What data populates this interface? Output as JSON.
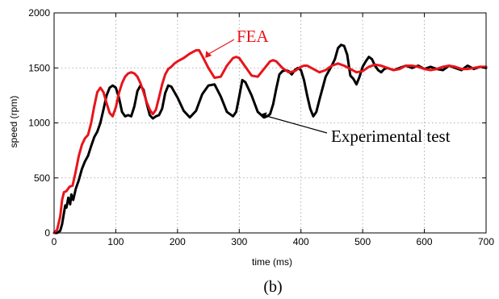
{
  "chart_data": {
    "type": "line",
    "xlabel": "time (ms)",
    "ylabel": "speed (rpm)",
    "xlim": [
      0,
      700
    ],
    "ylim": [
      0,
      2000
    ],
    "xticks": [
      0,
      100,
      200,
      300,
      400,
      500,
      600,
      700
    ],
    "yticks": [
      0,
      500,
      1000,
      1500,
      2000
    ],
    "grid": true,
    "caption": "(b)",
    "colors": {
      "FEA": "#e8141a",
      "Experimental test": "#000000"
    },
    "annotations": [
      {
        "text": "FEA",
        "points_to": {
          "x": 245,
          "y": 1590
        }
      },
      {
        "text": "Experimental test",
        "points_to": {
          "x": 333,
          "y": 1075
        }
      }
    ],
    "series": [
      {
        "name": "FEA",
        "x": [
          0,
          5,
          10,
          13,
          16,
          20,
          25,
          30,
          35,
          40,
          45,
          50,
          55,
          60,
          65,
          70,
          75,
          80,
          85,
          90,
          95,
          100,
          105,
          110,
          115,
          120,
          125,
          130,
          135,
          140,
          145,
          150,
          155,
          160,
          165,
          170,
          175,
          180,
          185,
          190,
          195,
          200,
          210,
          220,
          230,
          235,
          240,
          250,
          260,
          270,
          280,
          290,
          295,
          300,
          310,
          320,
          330,
          340,
          350,
          355,
          360,
          370,
          380,
          390,
          400,
          405,
          410,
          420,
          430,
          440,
          450,
          460,
          470,
          480,
          490,
          500,
          510,
          520,
          530,
          540,
          550,
          560,
          570,
          580,
          590,
          600,
          610,
          620,
          630,
          640,
          650,
          660,
          670,
          680,
          690,
          700
        ],
        "y": [
          0,
          30,
          150,
          300,
          370,
          380,
          420,
          430,
          560,
          700,
          800,
          860,
          890,
          1000,
          1150,
          1280,
          1320,
          1280,
          1180,
          1090,
          1060,
          1140,
          1270,
          1360,
          1420,
          1450,
          1460,
          1450,
          1420,
          1360,
          1280,
          1190,
          1120,
          1080,
          1120,
          1230,
          1350,
          1440,
          1490,
          1510,
          1540,
          1560,
          1590,
          1630,
          1660,
          1660,
          1610,
          1500,
          1410,
          1420,
          1520,
          1590,
          1600,
          1590,
          1510,
          1430,
          1420,
          1490,
          1560,
          1570,
          1560,
          1500,
          1460,
          1470,
          1510,
          1520,
          1520,
          1490,
          1460,
          1480,
          1520,
          1540,
          1520,
          1490,
          1460,
          1470,
          1510,
          1530,
          1520,
          1500,
          1480,
          1490,
          1520,
          1520,
          1510,
          1490,
          1480,
          1490,
          1510,
          1520,
          1510,
          1490,
          1490,
          1500,
          1510,
          1510
        ]
      },
      {
        "name": "Experimental test",
        "x": [
          0,
          5,
          10,
          13,
          16,
          18,
          20,
          23,
          26,
          28,
          31,
          35,
          40,
          45,
          50,
          55,
          60,
          65,
          70,
          75,
          80,
          85,
          90,
          95,
          100,
          105,
          110,
          115,
          120,
          125,
          130,
          135,
          140,
          145,
          150,
          155,
          160,
          165,
          170,
          175,
          180,
          185,
          190,
          195,
          200,
          210,
          220,
          230,
          240,
          250,
          260,
          270,
          280,
          290,
          295,
          300,
          305,
          310,
          320,
          330,
          340,
          345,
          350,
          355,
          360,
          365,
          370,
          375,
          380,
          385,
          390,
          395,
          400,
          405,
          410,
          415,
          420,
          425,
          430,
          440,
          450,
          455,
          460,
          465,
          470,
          475,
          480,
          485,
          490,
          495,
          500,
          505,
          510,
          515,
          520,
          525,
          530,
          535,
          540,
          550,
          560,
          570,
          580,
          590,
          600,
          610,
          620,
          630,
          640,
          650,
          660,
          670,
          680,
          690,
          700
        ],
        "y": [
          0,
          0,
          20,
          80,
          180,
          250,
          230,
          320,
          260,
          350,
          300,
          400,
          480,
          580,
          650,
          700,
          790,
          870,
          920,
          1000,
          1120,
          1250,
          1320,
          1340,
          1320,
          1230,
          1100,
          1060,
          1070,
          1060,
          1150,
          1290,
          1340,
          1300,
          1180,
          1070,
          1040,
          1060,
          1070,
          1130,
          1270,
          1340,
          1330,
          1280,
          1230,
          1110,
          1050,
          1110,
          1260,
          1340,
          1350,
          1240,
          1100,
          1060,
          1100,
          1240,
          1390,
          1370,
          1250,
          1100,
          1050,
          1060,
          1080,
          1170,
          1310,
          1440,
          1470,
          1480,
          1470,
          1440,
          1480,
          1500,
          1480,
          1390,
          1250,
          1130,
          1060,
          1100,
          1210,
          1420,
          1520,
          1580,
          1680,
          1710,
          1700,
          1620,
          1430,
          1400,
          1350,
          1420,
          1510,
          1560,
          1600,
          1580,
          1520,
          1480,
          1460,
          1490,
          1500,
          1480,
          1500,
          1520,
          1500,
          1520,
          1490,
          1510,
          1490,
          1480,
          1520,
          1500,
          1480,
          1520,
          1490,
          1510,
          1500
        ]
      }
    ]
  }
}
